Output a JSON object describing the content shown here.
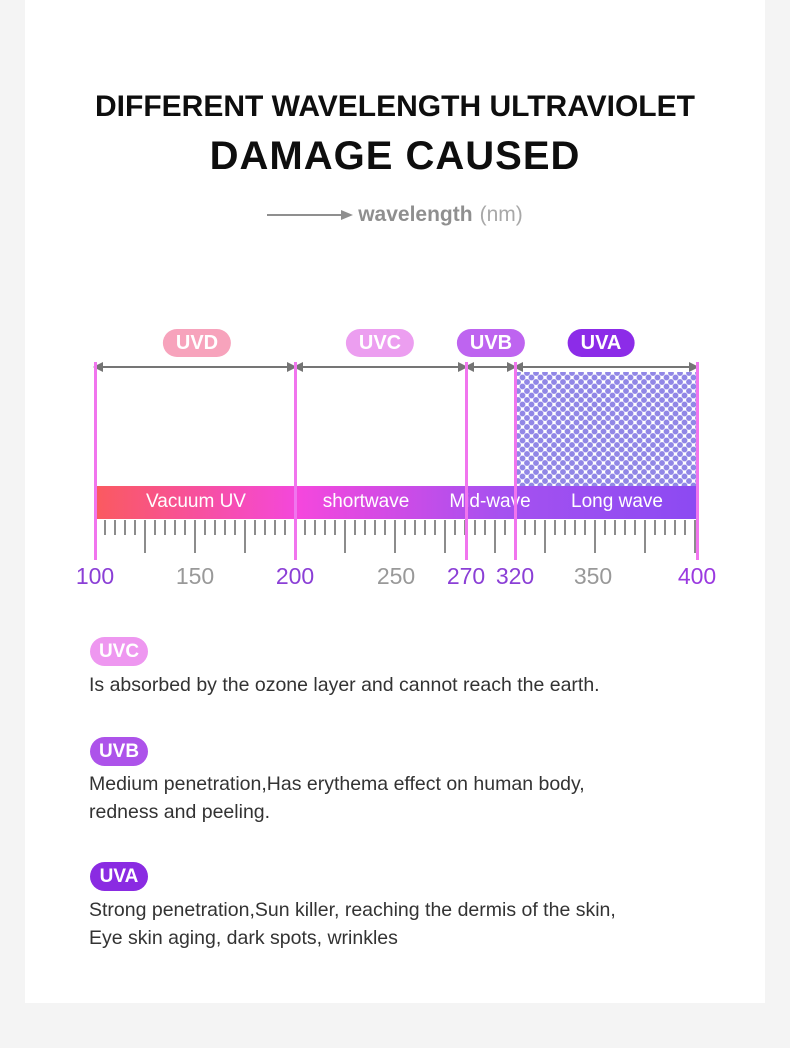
{
  "page": {
    "background": "#f4f4f4",
    "card_background": "#ffffff"
  },
  "header": {
    "title_line1": "DIFFERENT WAVELENGTH ULTRAVIOLET",
    "title_line2": "DAMAGE CAUSED",
    "axis_arrow_label": "wavelength",
    "axis_arrow_unit": "(nm)"
  },
  "diagram": {
    "bands": [
      {
        "label": "UVD",
        "badge_color": "#f7a3bc",
        "range_label": "Vacuum UV",
        "from_nm": 100,
        "to_nm": 200
      },
      {
        "label": "UVC",
        "badge_color": "#ec9ef0",
        "range_label": "shortwave",
        "from_nm": 200,
        "to_nm": 270
      },
      {
        "label": "UVB",
        "badge_color": "#be64f0",
        "range_label": "Mid-wave",
        "from_nm": 270,
        "to_nm": 320
      },
      {
        "label": "UVA",
        "badge_color": "#8c2ce8",
        "range_label": "Long wave",
        "from_nm": 320,
        "to_nm": 400
      }
    ],
    "scale": [
      {
        "value": "100",
        "color": "#8b3fd6"
      },
      {
        "value": "150",
        "color": "#999999"
      },
      {
        "value": "200",
        "color": "#8b3fd6"
      },
      {
        "value": "250",
        "color": "#999999"
      },
      {
        "value": "270",
        "color": "#8b3fd6"
      },
      {
        "value": "320",
        "color": "#8b3fd6"
      },
      {
        "value": "350",
        "color": "#999999"
      },
      {
        "value": "400",
        "color": "#9b3ae0"
      }
    ],
    "bar_gradient": [
      "#fa5a5f",
      "#f447dd",
      "#a551f0",
      "#8c4af2"
    ],
    "boundary_line_color": "#f175ee",
    "arrow_color": "#757575",
    "tick_color": "#8c8c8c",
    "dot_color": "#9187e6",
    "bar_text_color": "#ffffff"
  },
  "legend": [
    {
      "label": "UVC",
      "badge_color": "#ee97f0",
      "lines": [
        "Is absorbed by the ozone layer and cannot reach the earth."
      ]
    },
    {
      "label": "UVB",
      "badge_color": "#ad53ea",
      "lines": [
        "Medium penetration,Has erythema effect on human body,",
        "redness and peeling."
      ]
    },
    {
      "label": "UVA",
      "badge_color": "#8a2be2",
      "lines": [
        "Strong penetration,Sun killer, reaching the dermis of the skin,",
        "Eye skin aging, dark spots, wrinkles"
      ]
    }
  ]
}
